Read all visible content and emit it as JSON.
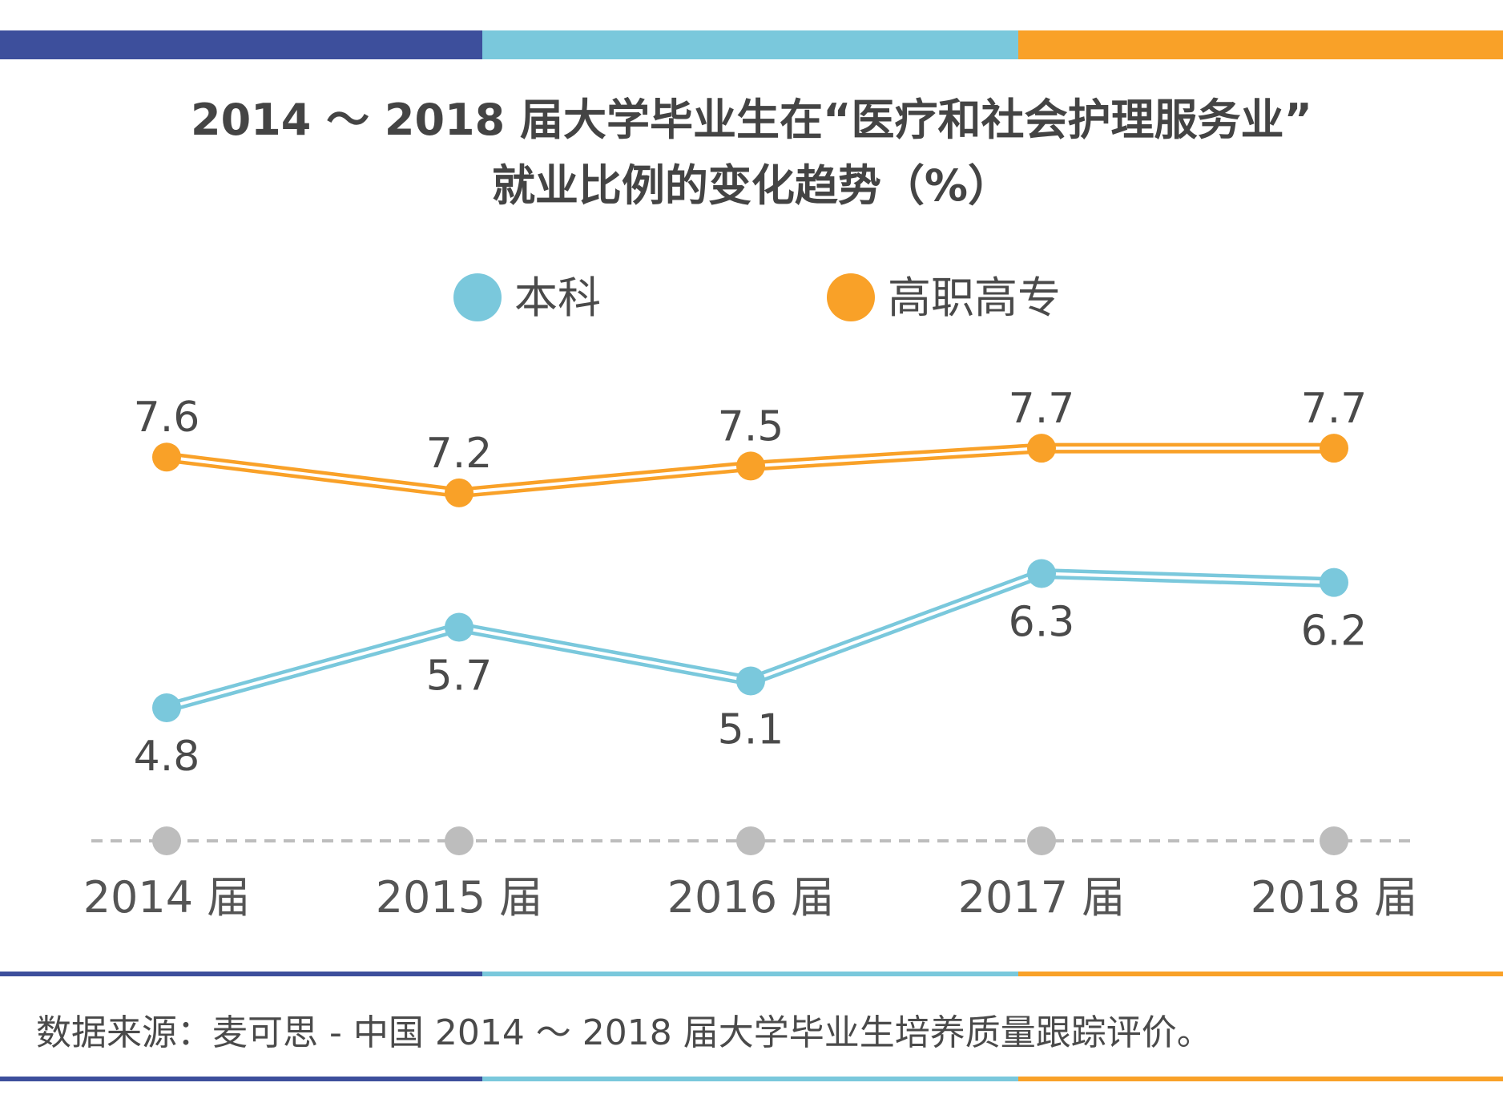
{
  "title_line1": "2014 ～ 2018 届大学毕业生在“医疗和社会护理服务业”",
  "title_line2": "就业比例的变化趋势（%）",
  "colors": {
    "navy": "#3d4f9c",
    "blue": "#7ac8dc",
    "orange": "#f9a128",
    "axis": "#bdbdbd",
    "text": "#4a4a4a"
  },
  "source": "数据来源：麦可思 - 中国 2014 ～ 2018 届大学毕业生培养质量跟踪评价。",
  "chart_data": {
    "type": "line",
    "title": "2014 ～ 2018 届大学毕业生在“医疗和社会护理服务业”就业比例的变化趋势（%）",
    "categories": [
      "2014 届",
      "2015 届",
      "2016 届",
      "2017 届",
      "2018 届"
    ],
    "series": [
      {
        "name": "本科",
        "color": "#7ac8dc",
        "values": [
          4.8,
          5.7,
          5.1,
          6.3,
          6.2
        ]
      },
      {
        "name": "高职高专",
        "color": "#f9a128",
        "values": [
          7.6,
          7.2,
          7.5,
          7.7,
          7.7
        ]
      }
    ],
    "legend": "top-center",
    "grid": false
  }
}
